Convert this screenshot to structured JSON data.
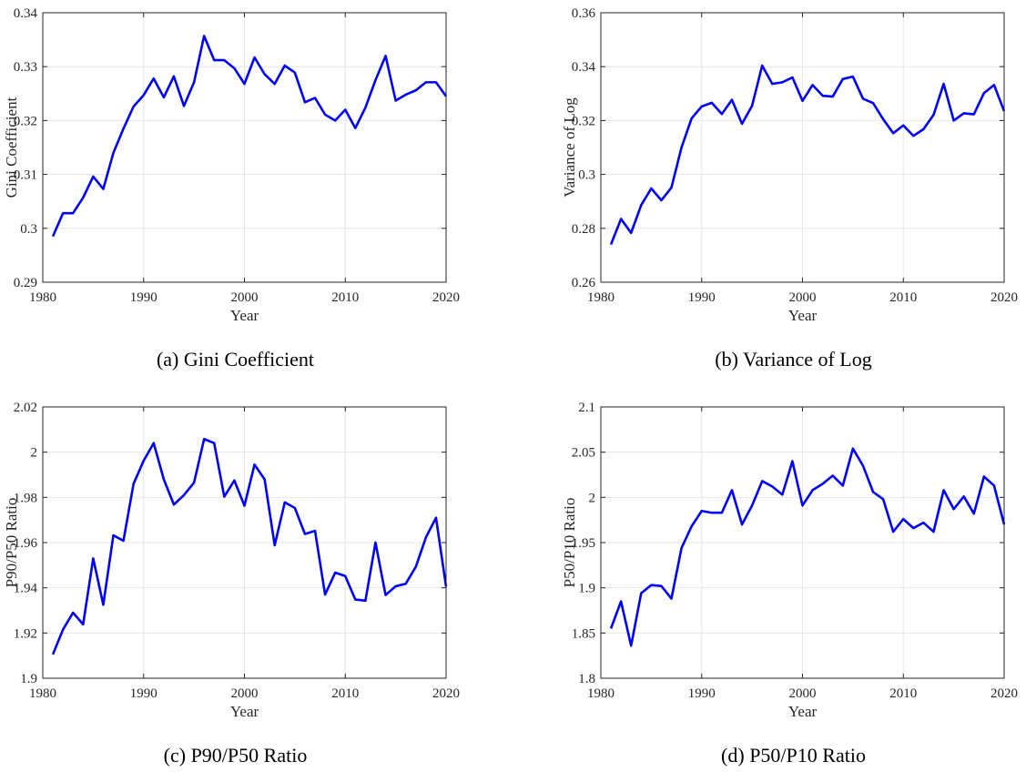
{
  "chart_data": [
    {
      "type": "line",
      "caption": "(a) Gini Coefficient",
      "xlabel": "Year",
      "ylabel": "Gini Coefficient",
      "color": "#0000ff",
      "grid": true,
      "x": [
        1981,
        1982,
        1983,
        1984,
        1985,
        1986,
        1987,
        1988,
        1989,
        1990,
        1991,
        1992,
        1993,
        1994,
        1995,
        1996,
        1997,
        1998,
        1999,
        2000,
        2001,
        2002,
        2003,
        2004,
        2005,
        2006,
        2007,
        2008,
        2009,
        2010,
        2011,
        2012,
        2013,
        2014,
        2015,
        2016,
        2017,
        2018,
        2019,
        2020
      ],
      "values": [
        0.2985,
        0.3028,
        0.3028,
        0.3057,
        0.3096,
        0.3073,
        0.314,
        0.3185,
        0.3226,
        0.3247,
        0.3278,
        0.3243,
        0.3282,
        0.3227,
        0.3271,
        0.3357,
        0.3312,
        0.3312,
        0.3297,
        0.3268,
        0.3317,
        0.3286,
        0.3268,
        0.3302,
        0.3289,
        0.3234,
        0.3242,
        0.3211,
        0.32,
        0.322,
        0.3186,
        0.3224,
        0.3275,
        0.332,
        0.3237,
        0.3248,
        0.3256,
        0.3271,
        0.3271,
        0.3245
      ],
      "xlim": [
        1980,
        2020
      ],
      "xticks": [
        1980,
        1990,
        2000,
        2010,
        2020
      ],
      "ylim": [
        0.29,
        0.34
      ],
      "yticks": [
        0.29,
        0.3,
        0.31,
        0.32,
        0.33,
        0.34
      ]
    },
    {
      "type": "line",
      "caption": "(b) Variance of Log",
      "xlabel": "Year",
      "ylabel": "Variance of Log",
      "color": "#0000ff",
      "grid": true,
      "x": [
        1981,
        1982,
        1983,
        1984,
        1985,
        1986,
        1987,
        1988,
        1989,
        1990,
        1991,
        1992,
        1993,
        1994,
        1995,
        1996,
        1997,
        1998,
        1999,
        2000,
        2001,
        2002,
        2003,
        2004,
        2005,
        2006,
        2007,
        2008,
        2009,
        2010,
        2011,
        2012,
        2013,
        2014,
        2015,
        2016,
        2017,
        2018,
        2019,
        2020
      ],
      "values": [
        0.274,
        0.2835,
        0.2783,
        0.2886,
        0.2948,
        0.2904,
        0.2951,
        0.31,
        0.3208,
        0.3252,
        0.3266,
        0.3224,
        0.3277,
        0.3188,
        0.3255,
        0.3404,
        0.3336,
        0.3342,
        0.336,
        0.3273,
        0.3332,
        0.3292,
        0.3289,
        0.3354,
        0.3363,
        0.3281,
        0.3265,
        0.3205,
        0.3153,
        0.3182,
        0.3143,
        0.3168,
        0.3221,
        0.3336,
        0.32,
        0.3227,
        0.3223,
        0.3302,
        0.3332,
        0.3235
      ],
      "xlim": [
        1980,
        2020
      ],
      "xticks": [
        1980,
        1990,
        2000,
        2010,
        2020
      ],
      "ylim": [
        0.26,
        0.36
      ],
      "yticks": [
        0.26,
        0.28,
        0.3,
        0.32,
        0.34,
        0.36
      ]
    },
    {
      "type": "line",
      "caption": "(c) P90/P50 Ratio",
      "xlabel": "Year",
      "ylabel": "P90/P50 Ratio",
      "color": "#0000ff",
      "grid": true,
      "x": [
        1981,
        1982,
        1983,
        1984,
        1985,
        1986,
        1987,
        1988,
        1989,
        1990,
        1991,
        1992,
        1993,
        1994,
        1995,
        1996,
        1997,
        1998,
        1999,
        2000,
        2001,
        2002,
        2003,
        2004,
        2005,
        2006,
        2007,
        2008,
        2009,
        2010,
        2011,
        2012,
        2013,
        2014,
        2015,
        2016,
        2017,
        2018,
        2019,
        2020
      ],
      "values": [
        1.9105,
        1.9215,
        1.929,
        1.9238,
        1.953,
        1.9325,
        1.9632,
        1.9608,
        1.986,
        1.9962,
        2.004,
        1.988,
        1.9768,
        1.981,
        1.9865,
        2.0058,
        2.004,
        1.9803,
        1.9875,
        1.9763,
        1.9945,
        1.988,
        1.9588,
        1.9778,
        1.9753,
        1.9638,
        1.9652,
        1.937,
        1.9467,
        1.9452,
        1.9348,
        1.9343,
        1.96,
        1.9368,
        1.9407,
        1.9418,
        1.9493,
        1.9623,
        1.971,
        1.9405
      ],
      "xlim": [
        1980,
        2020
      ],
      "xticks": [
        1980,
        1990,
        2000,
        2010,
        2020
      ],
      "ylim": [
        1.9,
        2.02
      ],
      "yticks": [
        1.9,
        1.92,
        1.94,
        1.96,
        1.98,
        2,
        2.02
      ]
    },
    {
      "type": "line",
      "caption": "(d) P50/P10 Ratio",
      "xlabel": "Year",
      "ylabel": "P50/P10 Ratio",
      "color": "#0000ff",
      "grid": true,
      "x": [
        1981,
        1982,
        1983,
        1984,
        1985,
        1986,
        1987,
        1988,
        1989,
        1990,
        1991,
        1992,
        1993,
        1994,
        1995,
        1996,
        1997,
        1998,
        1999,
        2000,
        2001,
        2002,
        2003,
        2004,
        2005,
        2006,
        2007,
        2008,
        2009,
        2010,
        2011,
        2012,
        2013,
        2014,
        2015,
        2016,
        2017,
        2018,
        2019,
        2020
      ],
      "values": [
        1.855,
        1.885,
        1.836,
        1.894,
        1.903,
        1.902,
        1.888,
        1.944,
        1.968,
        1.985,
        1.983,
        1.983,
        2.008,
        1.97,
        1.991,
        2.018,
        2.012,
        2.003,
        2.04,
        1.991,
        2.008,
        2.015,
        2.024,
        2.013,
        2.054,
        2.035,
        2.006,
        1.998,
        1.962,
        1.976,
        1.966,
        1.972,
        1.962,
        2.008,
        1.987,
        2.001,
        1.982,
        2.023,
        2.013,
        1.97
      ],
      "xlim": [
        1980,
        2020
      ],
      "xticks": [
        1980,
        1990,
        2000,
        2010,
        2020
      ],
      "ylim": [
        1.8,
        2.1
      ],
      "yticks": [
        1.8,
        1.85,
        1.9,
        1.95,
        2,
        2.05,
        2.1
      ]
    }
  ]
}
